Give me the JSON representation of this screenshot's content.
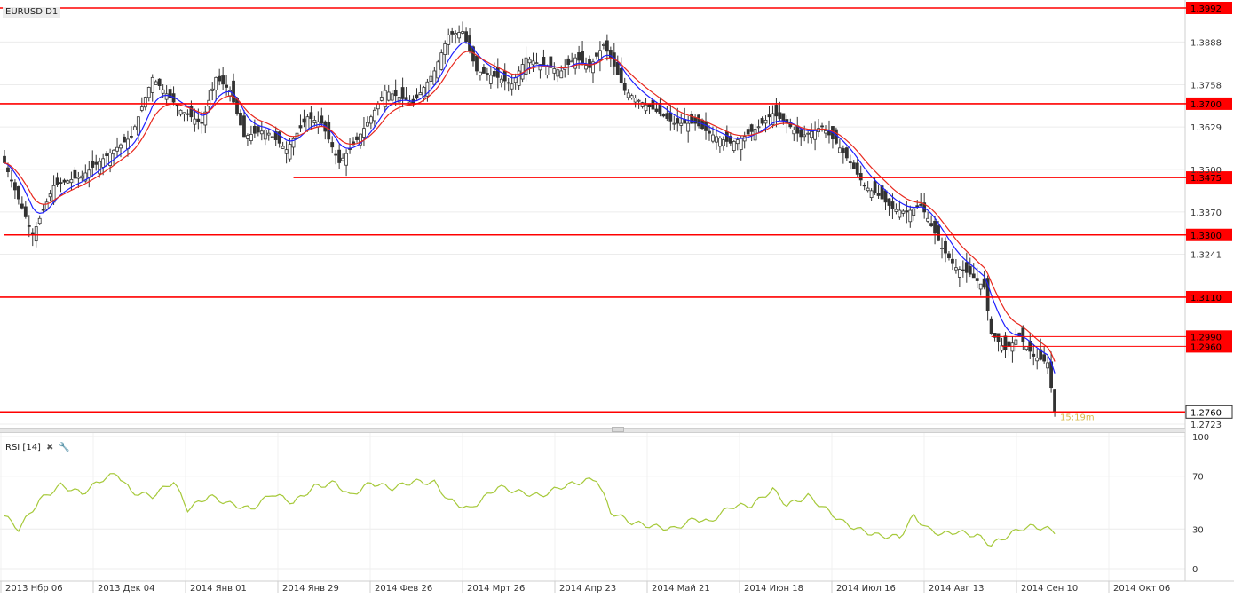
{
  "chart_data": [
    {
      "type": "candlestick",
      "symbol": "EURUSD D1",
      "ylim": [
        1.2723,
        1.3992
      ],
      "y_ticks": [
        "1.3888",
        "1.3758",
        "1.3629",
        "1.3500",
        "1.3370",
        "1.3241",
        "1.2723"
      ],
      "y_tick_values": [
        1.3888,
        1.3758,
        1.3629,
        1.35,
        1.337,
        1.3241,
        1.2723
      ],
      "current_price": "1.2760",
      "countdown": "15:19m",
      "levels": [
        {
          "label": "1.3992",
          "value": 1.3992
        },
        {
          "label": "1.3700",
          "value": 1.37
        },
        {
          "label": "1.3475",
          "value": 1.3475
        },
        {
          "label": "1.3300",
          "value": 1.33
        },
        {
          "label": "1.3110",
          "value": 1.311
        },
        {
          "label": "1.2990",
          "value": 1.299
        },
        {
          "label": "1.2960",
          "value": 1.296
        }
      ],
      "x_labels": [
        "2013 Нбр 06",
        "2013 Дек 04",
        "2014 Янв 01",
        "2014 Янв 29",
        "2014 Фев 26",
        "2014 Мрт 26",
        "2014 Апр 23",
        "2014 Май 21",
        "2014 Июн 18",
        "2014 Июл 16",
        "2014 Авг 13",
        "2014 Сен 10",
        "2014 Окт 06"
      ],
      "moving_averages": [
        {
          "color": "#1f1fff"
        },
        {
          "color": "#e8281e"
        }
      ],
      "close_anchors": [
        [
          0,
          1.352
        ],
        [
          8,
          1.33
        ],
        [
          14,
          1.345
        ],
        [
          22,
          1.348
        ],
        [
          30,
          1.355
        ],
        [
          36,
          1.36
        ],
        [
          42,
          1.378
        ],
        [
          46,
          1.373
        ],
        [
          50,
          1.368
        ],
        [
          56,
          1.364
        ],
        [
          60,
          1.378
        ],
        [
          64,
          1.374
        ],
        [
          68,
          1.36
        ],
        [
          74,
          1.362
        ],
        [
          80,
          1.356
        ],
        [
          86,
          1.366
        ],
        [
          90,
          1.364
        ],
        [
          95,
          1.352
        ],
        [
          100,
          1.359
        ],
        [
          104,
          1.366
        ],
        [
          108,
          1.374
        ],
        [
          112,
          1.372
        ],
        [
          116,
          1.37
        ],
        [
          122,
          1.38
        ],
        [
          126,
          1.391
        ],
        [
          130,
          1.392
        ],
        [
          134,
          1.38
        ],
        [
          140,
          1.378
        ],
        [
          144,
          1.376
        ],
        [
          148,
          1.384
        ],
        [
          152,
          1.382
        ],
        [
          158,
          1.38
        ],
        [
          162,
          1.384
        ],
        [
          166,
          1.381
        ],
        [
          170,
          1.388
        ],
        [
          172,
          1.384
        ],
        [
          176,
          1.374
        ],
        [
          180,
          1.371
        ],
        [
          186,
          1.367
        ],
        [
          190,
          1.364
        ],
        [
          196,
          1.364
        ],
        [
          200,
          1.361
        ],
        [
          206,
          1.358
        ],
        [
          210,
          1.36
        ],
        [
          214,
          1.363
        ],
        [
          218,
          1.367
        ],
        [
          222,
          1.364
        ],
        [
          226,
          1.36
        ],
        [
          232,
          1.363
        ],
        [
          236,
          1.358
        ],
        [
          240,
          1.352
        ],
        [
          244,
          1.345
        ],
        [
          248,
          1.342
        ],
        [
          252,
          1.338
        ],
        [
          256,
          1.337
        ],
        [
          260,
          1.339
        ],
        [
          262,
          1.335
        ],
        [
          266,
          1.326
        ],
        [
          270,
          1.32
        ],
        [
          274,
          1.318
        ],
        [
          278,
          1.314
        ],
        [
          280,
          1.3
        ],
        [
          284,
          1.295
        ],
        [
          288,
          1.299
        ],
        [
          292,
          1.293
        ],
        [
          296,
          1.291
        ],
        [
          298,
          1.276
        ]
      ]
    },
    {
      "type": "line",
      "title": "RSI [14]",
      "ylim": [
        0,
        100
      ],
      "y_ticks": [
        "100",
        "70",
        "30",
        "0"
      ],
      "y_tick_values": [
        100,
        70,
        30,
        0
      ],
      "color": "#a6c93a",
      "values_anchors": [
        [
          0,
          40
        ],
        [
          4,
          30
        ],
        [
          10,
          52
        ],
        [
          16,
          63
        ],
        [
          22,
          57
        ],
        [
          28,
          68
        ],
        [
          32,
          72
        ],
        [
          36,
          58
        ],
        [
          42,
          55
        ],
        [
          48,
          66
        ],
        [
          52,
          45
        ],
        [
          58,
          55
        ],
        [
          64,
          49
        ],
        [
          70,
          45
        ],
        [
          76,
          57
        ],
        [
          82,
          50
        ],
        [
          88,
          62
        ],
        [
          94,
          65
        ],
        [
          98,
          55
        ],
        [
          104,
          65
        ],
        [
          110,
          61
        ],
        [
          116,
          66
        ],
        [
          122,
          65
        ],
        [
          126,
          52
        ],
        [
          132,
          45
        ],
        [
          140,
          62
        ],
        [
          146,
          58
        ],
        [
          152,
          55
        ],
        [
          158,
          62
        ],
        [
          164,
          66
        ],
        [
          168,
          68
        ],
        [
          172,
          43
        ],
        [
          178,
          35
        ],
        [
          184,
          32
        ],
        [
          190,
          30
        ],
        [
          196,
          38
        ],
        [
          200,
          35
        ],
        [
          206,
          47
        ],
        [
          212,
          48
        ],
        [
          218,
          60
        ],
        [
          222,
          48
        ],
        [
          228,
          55
        ],
        [
          234,
          43
        ],
        [
          238,
          35
        ],
        [
          242,
          30
        ],
        [
          248,
          25
        ],
        [
          254,
          24
        ],
        [
          258,
          40
        ],
        [
          262,
          30
        ],
        [
          266,
          26
        ],
        [
          270,
          28
        ],
        [
          276,
          25
        ],
        [
          280,
          18
        ],
        [
          284,
          24
        ],
        [
          288,
          30
        ],
        [
          292,
          32
        ],
        [
          296,
          30
        ],
        [
          298,
          28
        ]
      ]
    }
  ]
}
